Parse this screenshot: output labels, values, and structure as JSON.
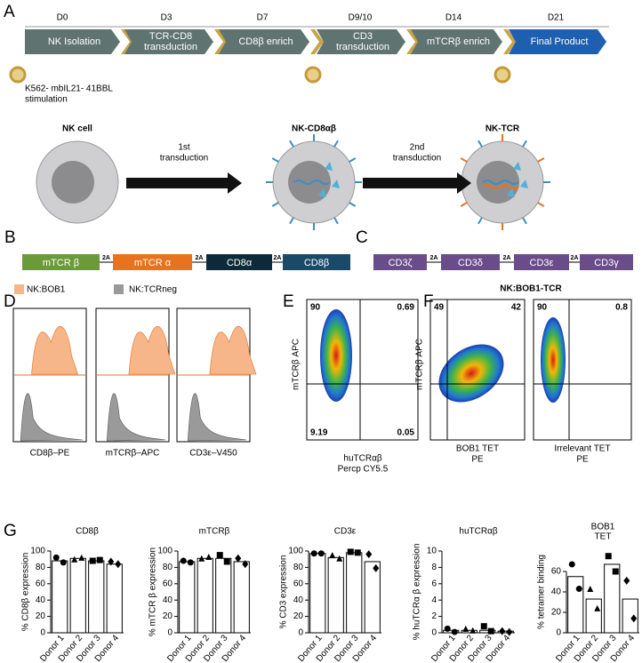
{
  "panel_a": {
    "letter": "A",
    "days": [
      "D0",
      "D3",
      "D7",
      "D9/10",
      "D14",
      "D21"
    ],
    "steps": [
      [
        "NK Isolation"
      ],
      [
        "TCR-CD8",
        "transduction"
      ],
      [
        "CD8β enrich"
      ],
      [
        "CD3",
        "transduction"
      ],
      [
        "mTCRβ enrich"
      ],
      [
        "Final Product"
      ]
    ],
    "stimulation": [
      "K562- mbIL21- 41BBL",
      "stimulation"
    ],
    "cells": [
      "NK cell",
      "NK-CD8αβ",
      "NK-TCR"
    ],
    "transductions": [
      [
        "1st",
        "transduction"
      ],
      [
        "2nd",
        "transduction"
      ]
    ]
  },
  "panel_b": {
    "letter": "B",
    "segments": [
      "mTCR  β",
      "2A",
      "mTCR  α",
      "2A",
      "CD8α",
      "2A",
      "CD8β"
    ]
  },
  "panel_c": {
    "letter": "C",
    "segments": [
      "CD3ζ",
      "2A",
      "CD3δ",
      "2A",
      "CD3ε",
      "2A",
      "CD3γ"
    ]
  },
  "panel_d": {
    "letter": "D",
    "legend": [
      "NK:BOB1",
      "NK:TCRneg"
    ],
    "x_labels": [
      "CD8β–PE",
      "mTCRβ–APC",
      "CD3ε–V450"
    ]
  },
  "panel_e": {
    "letter": "E",
    "y_label": "mTCRβ APC",
    "x_label": [
      "huTCRαβ",
      "Percp CY5.5"
    ],
    "quadrants": [
      "90",
      "0.69",
      "9.19",
      "0.05"
    ]
  },
  "panel_f": {
    "letter": "F",
    "title": "NK:BOB1-TCR",
    "y_label": "mTCRβ APC",
    "x_labels": [
      [
        "BOB1 TET",
        "PE"
      ],
      [
        "Irrelevant TET",
        "PE"
      ]
    ],
    "quadrants": [
      [
        "49",
        "42"
      ],
      [
        "90",
        "0.8"
      ]
    ]
  },
  "panel_g": {
    "letter": "G"
  },
  "chart_data": [
    {
      "type": "bar",
      "title": [
        "CD8β"
      ],
      "y_label": "% CD8β  expression",
      "categories": [
        "Donor 1",
        "Donor 2",
        "Donor 3",
        "Donor 4"
      ],
      "values": [
        88,
        91,
        88,
        84
      ],
      "points": [
        [
          92,
          86
        ],
        [
          90,
          92
        ],
        [
          88,
          89
        ],
        [
          87,
          84
        ]
      ],
      "ylim": [
        0,
        100
      ],
      "yticks": [
        0,
        20,
        40,
        60,
        80,
        100
      ]
    },
    {
      "type": "bar",
      "title": [
        "mTCRβ"
      ],
      "y_label": "% mTCR β  expression",
      "categories": [
        "Donor 1",
        "Donor 2",
        "Donor 3",
        "Donor 4"
      ],
      "values": [
        87,
        91,
        91,
        87
      ],
      "points": [
        [
          88,
          86
        ],
        [
          91,
          93
        ],
        [
          95,
          87
        ],
        [
          91,
          84
        ]
      ],
      "ylim": [
        0,
        100
      ],
      "yticks": [
        0,
        20,
        40,
        60,
        80,
        100
      ]
    },
    {
      "type": "bar",
      "title": [
        "CD3ε"
      ],
      "y_label": "% CD3 expression",
      "categories": [
        "Donor 1",
        "Donor 2",
        "Donor 3",
        "Donor 4"
      ],
      "values": [
        97,
        92,
        98,
        87
      ],
      "points": [
        [
          97,
          97
        ],
        [
          95,
          91
        ],
        [
          99,
          98
        ],
        [
          96,
          79
        ]
      ],
      "ylim": [
        0,
        100
      ],
      "yticks": [
        0,
        20,
        40,
        60,
        80,
        100
      ]
    },
    {
      "type": "bar",
      "title": [
        "huTCRαβ"
      ],
      "y_label": "% huTCRα β  expression",
      "categories": [
        "Donor 1",
        "Donor 2",
        "Donor 3",
        "Donor 4"
      ],
      "values": [
        0.3,
        0.3,
        0.3,
        0.2
      ],
      "points": [
        [
          0.5,
          0.1
        ],
        [
          0.5,
          0.3
        ],
        [
          0.8,
          0.2
        ],
        [
          0.2,
          0.1
        ]
      ],
      "ylim": [
        0,
        10
      ],
      "yticks": [
        0,
        2,
        4,
        6,
        8,
        10
      ]
    },
    {
      "type": "bar",
      "title": [
        "BOB1",
        "TET"
      ],
      "y_label": "% tetramer binding",
      "categories": [
        "Donor 1",
        "Donor 2",
        "Donor 3",
        "Donor 4"
      ],
      "values": [
        55,
        33,
        67,
        33
      ],
      "points": [
        [
          67,
          43
        ],
        [
          43,
          24
        ],
        [
          75,
          60
        ],
        [
          51,
          14
        ]
      ],
      "ylim": [
        0,
        80
      ],
      "yticks": [
        0,
        20,
        40,
        60
      ]
    }
  ]
}
